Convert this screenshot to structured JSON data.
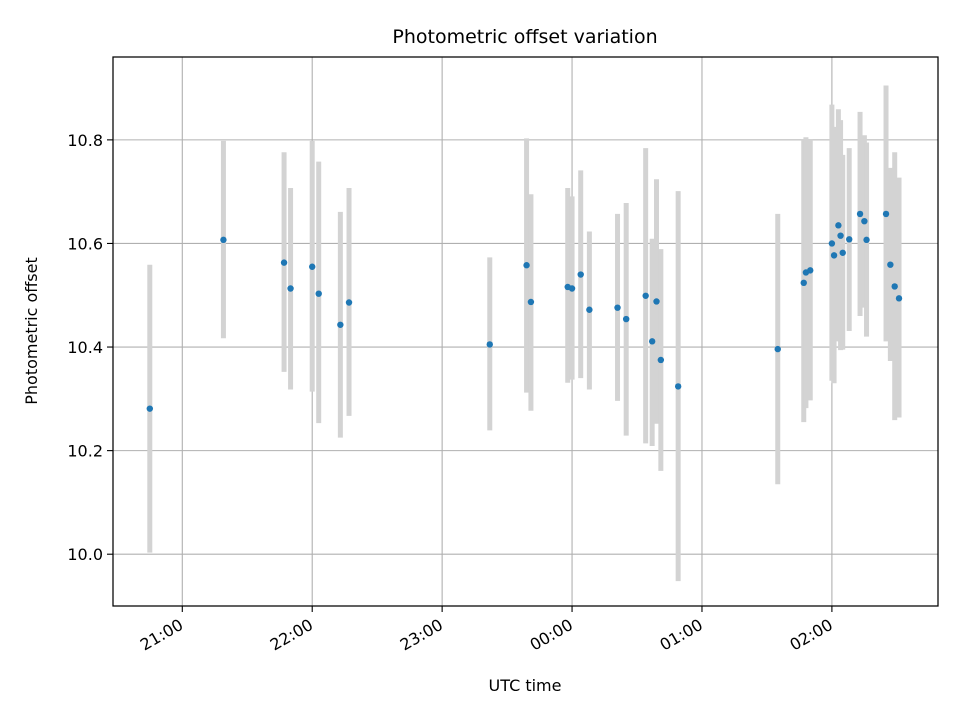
{
  "chart_data": {
    "type": "scatter",
    "title": "Photometric offset variation",
    "xlabel": "UTC time",
    "ylabel": "Photometric offset",
    "x_unit": "UTC time (HH:MM)",
    "xlim": [
      "20:28",
      "02:49"
    ],
    "ylim": [
      9.9,
      10.96
    ],
    "x_ticks": [
      "21:00",
      "22:00",
      "23:00",
      "00:00",
      "01:00",
      "02:00"
    ],
    "y_ticks": [
      10.0,
      10.2,
      10.4,
      10.6,
      10.8
    ],
    "y_tick_labels": [
      "10.0",
      "10.2",
      "10.4",
      "10.6",
      "10.8"
    ],
    "grid": true,
    "legend": "none",
    "colors": {
      "points": "#1f77b4",
      "error_bars": "#d3d3d3",
      "grid": "#b0b0b0"
    },
    "series": [
      {
        "points": [
          {
            "t": "20:45",
            "y": 10.281,
            "lo": 10.003,
            "hi": 10.559
          },
          {
            "t": "21:19",
            "y": 10.607,
            "lo": 10.417,
            "hi": 10.798
          },
          {
            "t": "21:47",
            "y": 10.563,
            "lo": 10.352,
            "hi": 10.776
          },
          {
            "t": "21:50",
            "y": 10.513,
            "lo": 10.318,
            "hi": 10.707
          },
          {
            "t": "22:00",
            "y": 10.555,
            "lo": 10.314,
            "hi": 10.798
          },
          {
            "t": "22:03",
            "y": 10.503,
            "lo": 10.253,
            "hi": 10.758
          },
          {
            "t": "22:13",
            "y": 10.443,
            "lo": 10.225,
            "hi": 10.661
          },
          {
            "t": "22:17",
            "y": 10.486,
            "lo": 10.267,
            "hi": 10.707
          },
          {
            "t": "23:22",
            "y": 10.405,
            "lo": 10.239,
            "hi": 10.573
          },
          {
            "t": "23:39",
            "y": 10.558,
            "lo": 10.312,
            "hi": 10.803
          },
          {
            "t": "23:41",
            "y": 10.487,
            "lo": 10.277,
            "hi": 10.695
          },
          {
            "t": "23:58",
            "y": 10.516,
            "lo": 10.331,
            "hi": 10.707
          },
          {
            "t": "00:00",
            "y": 10.513,
            "lo": 10.337,
            "hi": 10.691
          },
          {
            "t": "00:04",
            "y": 10.54,
            "lo": 10.34,
            "hi": 10.741
          },
          {
            "t": "00:08",
            "y": 10.472,
            "lo": 10.318,
            "hi": 10.623
          },
          {
            "t": "00:21",
            "y": 10.476,
            "lo": 10.296,
            "hi": 10.657
          },
          {
            "t": "00:25",
            "y": 10.454,
            "lo": 10.229,
            "hi": 10.678
          },
          {
            "t": "00:34",
            "y": 10.499,
            "lo": 10.214,
            "hi": 10.784
          },
          {
            "t": "00:37",
            "y": 10.411,
            "lo": 10.209,
            "hi": 10.609
          },
          {
            "t": "00:39",
            "y": 10.488,
            "lo": 10.252,
            "hi": 10.724
          },
          {
            "t": "00:41",
            "y": 10.375,
            "lo": 10.161,
            "hi": 10.589
          },
          {
            "t": "00:49",
            "y": 10.324,
            "lo": 9.948,
            "hi": 10.701
          },
          {
            "t": "01:35",
            "y": 10.396,
            "lo": 10.135,
            "hi": 10.657
          },
          {
            "t": "01:47",
            "y": 10.524,
            "lo": 10.255,
            "hi": 10.8
          },
          {
            "t": "01:48",
            "y": 10.544,
            "lo": 10.282,
            "hi": 10.805
          },
          {
            "t": "01:50",
            "y": 10.548,
            "lo": 10.297,
            "hi": 10.8
          },
          {
            "t": "02:00",
            "y": 10.6,
            "lo": 10.335,
            "hi": 10.868
          },
          {
            "t": "02:01",
            "y": 10.577,
            "lo": 10.33,
            "hi": 10.825
          },
          {
            "t": "02:03",
            "y": 10.635,
            "lo": 10.411,
            "hi": 10.859
          },
          {
            "t": "02:04",
            "y": 10.615,
            "lo": 10.394,
            "hi": 10.838
          },
          {
            "t": "02:05",
            "y": 10.582,
            "lo": 10.395,
            "hi": 10.771
          },
          {
            "t": "02:08",
            "y": 10.608,
            "lo": 10.431,
            "hi": 10.784
          },
          {
            "t": "02:13",
            "y": 10.657,
            "lo": 10.46,
            "hi": 10.854
          },
          {
            "t": "02:15",
            "y": 10.643,
            "lo": 10.476,
            "hi": 10.809
          },
          {
            "t": "02:16",
            "y": 10.607,
            "lo": 10.42,
            "hi": 10.795
          },
          {
            "t": "02:25",
            "y": 10.657,
            "lo": 10.411,
            "hi": 10.905
          },
          {
            "t": "02:27",
            "y": 10.559,
            "lo": 10.373,
            "hi": 10.746
          },
          {
            "t": "02:29",
            "y": 10.517,
            "lo": 10.259,
            "hi": 10.776
          },
          {
            "t": "02:31",
            "y": 10.494,
            "lo": 10.264,
            "hi": 10.727
          }
        ]
      }
    ]
  }
}
